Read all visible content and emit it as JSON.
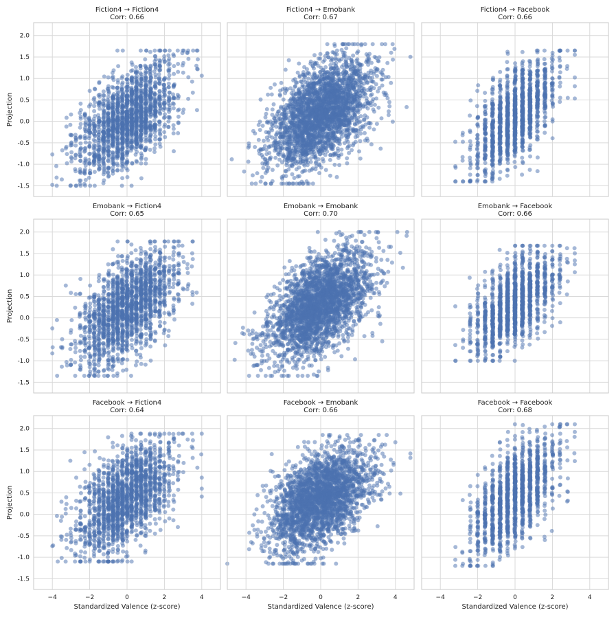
{
  "figure": {
    "x_axis_label": "Standardized Valence (z-score)",
    "y_axis_label": "Projection"
  },
  "style": {
    "point_color": "#4c72b0",
    "grid_color": "#d9d9d9",
    "panel_border_color": "#c8c8c8"
  },
  "chart_data": [
    {
      "type": "scatter",
      "title": "Fiction4 → Fiction4",
      "corr_label": "Corr: 0.66",
      "corr": 0.66,
      "xlim": [
        -5,
        5
      ],
      "ylim": [
        -1.75,
        2.3
      ],
      "xticks": [
        -4,
        -2,
        0,
        2,
        4
      ],
      "yticks": [
        -1.5,
        -1.0,
        -0.5,
        0.0,
        0.5,
        1.0,
        1.5,
        2.0
      ],
      "x_distribution": "discrete",
      "x_range": [
        -4.0,
        4.0
      ],
      "y_range": [
        -1.5,
        1.65
      ],
      "n_points": 1800,
      "seed": 11
    },
    {
      "type": "scatter",
      "title": "Fiction4 → Emobank",
      "corr_label": "Corr: 0.67",
      "corr": 0.67,
      "xlim": [
        -5,
        5
      ],
      "ylim": [
        -1.75,
        2.3
      ],
      "xticks": [
        -4,
        -2,
        0,
        2,
        4
      ],
      "yticks": [
        -1.5,
        -1.0,
        -0.5,
        0.0,
        0.5,
        1.0,
        1.5,
        2.0
      ],
      "x_distribution": "continuous",
      "x_range": [
        -5.0,
        4.8
      ],
      "y_range": [
        -1.45,
        1.8
      ],
      "n_points": 2600,
      "seed": 23
    },
    {
      "type": "scatter",
      "title": "Fiction4 → Facebook",
      "corr_label": "Corr: 0.66",
      "corr": 0.66,
      "xlim": [
        -5,
        5
      ],
      "ylim": [
        -1.75,
        2.3
      ],
      "xticks": [
        -4,
        -2,
        0,
        2,
        4
      ],
      "yticks": [
        -1.5,
        -1.0,
        -0.5,
        0.0,
        0.5,
        1.0,
        1.5,
        2.0
      ],
      "x_distribution": "columns",
      "x_range": [
        -3.2,
        3.2
      ],
      "y_range": [
        -1.4,
        1.65
      ],
      "n_points": 1400,
      "seed": 37
    },
    {
      "type": "scatter",
      "title": "Emobank → Fiction4",
      "corr_label": "Corr: 0.65",
      "corr": 0.65,
      "xlim": [
        -5,
        5
      ],
      "ylim": [
        -1.75,
        2.3
      ],
      "xticks": [
        -4,
        -2,
        0,
        2,
        4
      ],
      "yticks": [
        -1.5,
        -1.0,
        -0.5,
        0.0,
        0.5,
        1.0,
        1.5,
        2.0
      ],
      "x_distribution": "discrete",
      "x_range": [
        -4.0,
        4.0
      ],
      "y_range": [
        -1.35,
        1.78
      ],
      "n_points": 1800,
      "seed": 41
    },
    {
      "type": "scatter",
      "title": "Emobank → Emobank",
      "corr_label": "Corr: 0.70",
      "corr": 0.7,
      "xlim": [
        -5,
        5
      ],
      "ylim": [
        -1.75,
        2.3
      ],
      "xticks": [
        -4,
        -2,
        0,
        2,
        4
      ],
      "yticks": [
        -1.5,
        -1.0,
        -0.5,
        0.0,
        0.5,
        1.0,
        1.5,
        2.0
      ],
      "x_distribution": "continuous",
      "x_range": [
        -5.0,
        4.8
      ],
      "y_range": [
        -1.35,
        2.0
      ],
      "n_points": 2600,
      "seed": 53
    },
    {
      "type": "scatter",
      "title": "Emobank → Facebook",
      "corr_label": "Corr: 0.66",
      "corr": 0.66,
      "xlim": [
        -5,
        5
      ],
      "ylim": [
        -1.75,
        2.3
      ],
      "xticks": [
        -4,
        -2,
        0,
        2,
        4
      ],
      "yticks": [
        -1.5,
        -1.0,
        -0.5,
        0.0,
        0.5,
        1.0,
        1.5,
        2.0
      ],
      "x_distribution": "columns",
      "x_range": [
        -3.2,
        3.2
      ],
      "y_range": [
        -1.0,
        1.68
      ],
      "n_points": 1400,
      "seed": 67
    },
    {
      "type": "scatter",
      "title": "Facebook → Fiction4",
      "corr_label": "Corr: 0.64",
      "corr": 0.64,
      "xlim": [
        -5,
        5
      ],
      "ylim": [
        -1.75,
        2.3
      ],
      "xticks": [
        -4,
        -2,
        0,
        2,
        4
      ],
      "yticks": [
        -1.5,
        -1.0,
        -0.5,
        0.0,
        0.5,
        1.0,
        1.5,
        2.0
      ],
      "x_distribution": "discrete",
      "x_range": [
        -4.0,
        4.0
      ],
      "y_range": [
        -1.1,
        1.88
      ],
      "n_points": 1800,
      "seed": 71
    },
    {
      "type": "scatter",
      "title": "Facebook → Emobank",
      "corr_label": "Corr: 0.66",
      "corr": 0.66,
      "xlim": [
        -5,
        5
      ],
      "ylim": [
        -1.75,
        2.3
      ],
      "xticks": [
        -4,
        -2,
        0,
        2,
        4
      ],
      "yticks": [
        -1.5,
        -1.0,
        -0.5,
        0.0,
        0.5,
        1.0,
        1.5,
        2.0
      ],
      "x_distribution": "continuous",
      "x_range": [
        -5.0,
        4.8
      ],
      "y_range": [
        -1.15,
        1.85
      ],
      "n_points": 2600,
      "seed": 83
    },
    {
      "type": "scatter",
      "title": "Facebook → Facebook",
      "corr_label": "Corr: 0.68",
      "corr": 0.68,
      "xlim": [
        -5,
        5
      ],
      "ylim": [
        -1.75,
        2.3
      ],
      "xticks": [
        -4,
        -2,
        0,
        2,
        4
      ],
      "yticks": [
        -1.5,
        -1.0,
        -0.5,
        0.0,
        0.5,
        1.0,
        1.5,
        2.0
      ],
      "x_distribution": "columns",
      "x_range": [
        -3.2,
        3.2
      ],
      "y_range": [
        -1.2,
        2.1
      ],
      "n_points": 1400,
      "seed": 97
    }
  ]
}
